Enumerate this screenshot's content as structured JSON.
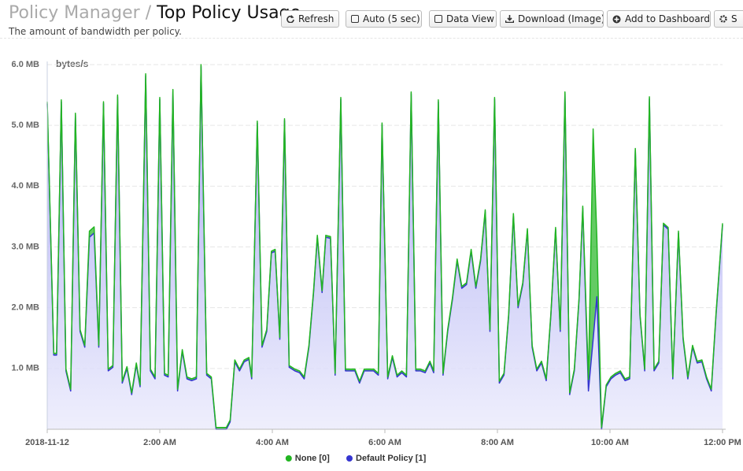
{
  "header": {
    "breadcrumb": "Policy Manager",
    "separator": "/",
    "title": "Top Policy Usage",
    "subtitle": "The amount of bandwidth per policy."
  },
  "toolbar": {
    "buttons": [
      "Refresh",
      "Auto (5 sec)",
      "Data View",
      "Download (Image)",
      "Add to Dashboard",
      "S"
    ]
  },
  "chart_data": {
    "type": "area",
    "stacked": true,
    "y_axis_title": "bytes/s",
    "x": [
      0,
      7,
      10,
      15,
      20,
      25,
      30,
      35,
      40,
      45,
      50,
      55,
      60,
      65,
      70,
      75,
      80,
      85,
      90,
      95,
      99,
      105,
      110,
      115,
      120,
      125,
      129,
      134,
      139,
      144,
      149,
      154,
      159,
      164,
      170,
      175,
      180,
      191,
      195,
      200,
      205,
      210,
      215,
      218,
      224,
      229,
      234,
      239,
      243,
      248,
      253,
      258,
      264,
      269,
      274,
      279,
      284,
      288,
      293,
      297,
      302,
      307,
      313,
      318,
      323,
      328,
      333,
      338,
      343,
      348,
      353,
      357,
      363,
      368,
      373,
      378,
      383,
      388,
      393,
      398,
      403,
      408,
      412,
      417,
      422,
      427,
      432,
      437,
      442,
      447,
      452,
      457,
      462,
      467,
      472,
      477,
      482,
      487,
      492,
      497,
      502,
      507,
      512,
      517,
      522,
      527,
      532,
      537,
      542,
      547,
      552,
      557,
      562,
      567,
      571,
      577,
      582,
      586,
      591,
      596,
      601,
      606,
      611,
      616,
      621,
      627,
      632,
      637,
      642,
      647,
      652,
      657,
      662,
      667,
      673,
      678,
      683,
      688,
      693,
      698,
      703,
      708,
      713,
      720
    ],
    "series": [
      {
        "name": "None [0]",
        "color": "#22b522",
        "values": [
          0.03,
          0.03,
          0.03,
          0.03,
          0.03,
          0.03,
          0.03,
          0.03,
          0.03,
          0.1,
          0.1,
          0.03,
          0.03,
          0.03,
          0.03,
          0.03,
          0.03,
          0.03,
          0.03,
          0.03,
          0.03,
          0.03,
          0.03,
          0.03,
          0.03,
          0.03,
          0.03,
          0.03,
          0.03,
          0.03,
          0.03,
          0.03,
          0.03,
          0.03,
          0.03,
          0.03,
          0.03,
          0.03,
          0.03,
          0.03,
          0.03,
          0.03,
          0.03,
          0.03,
          0.03,
          0.03,
          0.03,
          0.03,
          0.03,
          0.03,
          0.03,
          0.03,
          0.03,
          0.03,
          0.03,
          0.03,
          0.03,
          0.03,
          0.03,
          0.03,
          0.03,
          0.03,
          0.03,
          0.03,
          0.03,
          0.03,
          0.03,
          0.03,
          0.03,
          0.03,
          0.03,
          0.03,
          0.03,
          0.03,
          0.03,
          0.03,
          0.03,
          0.03,
          0.03,
          0.03,
          0.03,
          0.03,
          0.03,
          0.03,
          0.03,
          0.03,
          0.03,
          0.03,
          0.03,
          0.03,
          0.03,
          0.03,
          0.03,
          0.03,
          0.03,
          0.03,
          0.03,
          0.03,
          0.03,
          0.03,
          0.03,
          0.03,
          0.03,
          0.03,
          0.03,
          0.03,
          0.03,
          0.03,
          0.03,
          0.03,
          0.03,
          0.03,
          0.03,
          0.03,
          0.03,
          0.19,
          3.46,
          0.98,
          0.03,
          0.03,
          0.03,
          0.03,
          0.03,
          0.03,
          0.03,
          0.03,
          0.03,
          0.03,
          0.03,
          0.03,
          0.03,
          0.03,
          0.03,
          0.03,
          0.03,
          0.03,
          0.03,
          0.03,
          0.03,
          0.03,
          0.03,
          0.03,
          0.03,
          0.03
        ]
      },
      {
        "name": "Default Policy [1]",
        "color": "#3535d0",
        "values": [
          5.36,
          1.22,
          1.22,
          5.39,
          0.96,
          0.63,
          5.17,
          1.61,
          1.35,
          3.16,
          3.23,
          1.35,
          5.36,
          0.96,
          1.02,
          5.47,
          0.76,
          1.0,
          0.57,
          1.06,
          0.7,
          5.82,
          0.96,
          0.83,
          5.43,
          0.89,
          0.86,
          5.56,
          0.63,
          1.28,
          0.83,
          0.8,
          0.83,
          5.97,
          0.89,
          0.83,
          0,
          0,
          0.12,
          1.11,
          0.96,
          1.11,
          1.15,
          0.83,
          5.04,
          1.35,
          1.61,
          2.9,
          2.93,
          1.48,
          5.08,
          1.02,
          0.96,
          0.93,
          0.83,
          1.35,
          2.25,
          3.16,
          2.25,
          3.16,
          3.14,
          0.89,
          5.43,
          0.96,
          0.96,
          0.96,
          0.76,
          0.96,
          0.96,
          0.96,
          0.89,
          5.01,
          0.83,
          1.18,
          0.86,
          0.93,
          0.86,
          5.52,
          0.96,
          0.96,
          0.93,
          1.09,
          0.93,
          5.39,
          0.89,
          1.61,
          2.13,
          2.77,
          2.32,
          2.38,
          2.93,
          2.32,
          2.77,
          3.58,
          1.61,
          5.43,
          0.76,
          0.89,
          1.87,
          3.52,
          2.0,
          2.38,
          3.27,
          1.35,
          0.96,
          1.09,
          0.8,
          1.87,
          3.29,
          1.61,
          5.52,
          0.57,
          0.96,
          2.13,
          3.64,
          0.63,
          1.48,
          2.18,
          0,
          0.7,
          0.83,
          0.89,
          0.93,
          0.8,
          0.83,
          4.59,
          1.87,
          0.96,
          5.44,
          0.96,
          1.09,
          3.36,
          3.29,
          0.83,
          3.23,
          1.48,
          0.83,
          1.35,
          1.09,
          1.11,
          0.83,
          0.63,
          1.87,
          3.36
        ]
      }
    ],
    "xlim": [
      0,
      720
    ],
    "xticks": [
      {
        "value": 0,
        "label": "2018-11-12"
      },
      {
        "value": 120,
        "label": "2:00 AM"
      },
      {
        "value": 240,
        "label": "4:00 AM"
      },
      {
        "value": 360,
        "label": "6:00 AM"
      },
      {
        "value": 480,
        "label": "8:00 AM"
      },
      {
        "value": 600,
        "label": "10:00 AM"
      },
      {
        "value": 720,
        "label": "12:00 PM"
      }
    ],
    "ylim": [
      0,
      6
    ],
    "yticks": [
      {
        "value": 1,
        "label": "1.0 MB"
      },
      {
        "value": 2,
        "label": "2.0 MB"
      },
      {
        "value": 3,
        "label": "3.0 MB"
      },
      {
        "value": 4,
        "label": "4.0 MB"
      },
      {
        "value": 5,
        "label": "5.0 MB"
      },
      {
        "value": 6,
        "label": "6.0 MB"
      }
    ],
    "grid": true,
    "legend": "bottom"
  }
}
